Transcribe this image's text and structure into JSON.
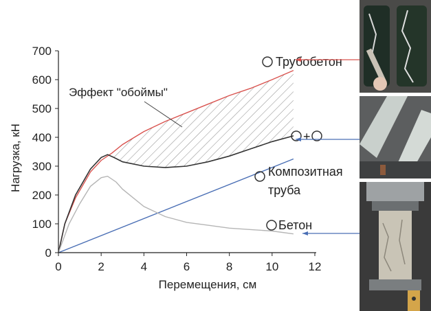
{
  "chart_data": {
    "type": "line",
    "xlabel": "Перемещения, см",
    "ylabel": "Нагрузка, кН",
    "xlim": [
      0,
      12
    ],
    "ylim": [
      0,
      700
    ],
    "xticks": [
      "0",
      "2",
      "4",
      "6",
      "8",
      "10",
      "12"
    ],
    "yticks": [
      "0",
      "100",
      "200",
      "300",
      "400",
      "500",
      "600",
      "700"
    ],
    "grid": false,
    "annotation": "Эффект \"обоймы\"",
    "series": [
      {
        "name": "Трубобетон",
        "color": "#d9534f",
        "x": [
          0,
          0.3,
          0.8,
          1.5,
          2.0,
          2.5,
          3,
          4,
          5,
          6,
          7,
          8,
          9,
          10,
          11
        ],
        "y": [
          0,
          100,
          190,
          280,
          320,
          345,
          375,
          420,
          455,
          485,
          515,
          545,
          570,
          600,
          632
        ]
      },
      {
        "name": "+",
        "color": "#333333",
        "x": [
          0,
          0.3,
          0.8,
          1.5,
          2.0,
          2.3,
          2.6,
          3,
          4,
          5,
          6,
          7,
          8,
          9,
          10,
          11
        ],
        "y": [
          0,
          100,
          200,
          290,
          330,
          340,
          330,
          315,
          300,
          295,
          300,
          315,
          335,
          360,
          385,
          405
        ]
      },
      {
        "name": "Композитная труба",
        "color": "#4a6fb5",
        "x": [
          0,
          11
        ],
        "y": [
          0,
          325
        ]
      },
      {
        "name": "Бетон",
        "color": "#b5b5b5",
        "x": [
          0,
          0.5,
          1.0,
          1.5,
          2.0,
          2.3,
          2.7,
          3,
          4,
          5,
          6,
          7,
          8,
          9,
          10,
          11
        ],
        "y": [
          0,
          100,
          170,
          230,
          260,
          265,
          245,
          220,
          160,
          125,
          105,
          95,
          85,
          80,
          75,
          65
        ]
      }
    ],
    "markers": {
      "truboBeton": "Трубобетон",
      "plus": "+",
      "kompozit_line1": "Композитная",
      "kompozit_line2": "труба",
      "beton": "Бетон"
    }
  }
}
